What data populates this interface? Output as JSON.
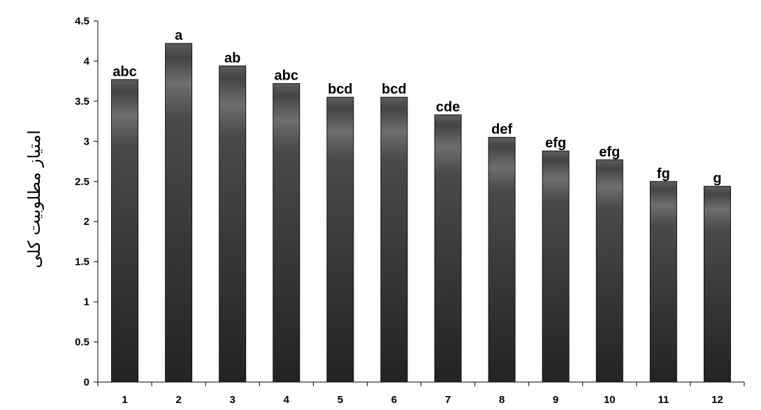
{
  "chart_data": {
    "type": "bar",
    "categories": [
      "1",
      "2",
      "3",
      "4",
      "5",
      "6",
      "7",
      "8",
      "9",
      "10",
      "11",
      "12"
    ],
    "values": [
      3.77,
      4.22,
      3.94,
      3.72,
      3.55,
      3.55,
      3.33,
      3.05,
      2.88,
      2.77,
      2.5,
      2.44
    ],
    "bar_labels": [
      "abc",
      "a",
      "ab",
      "abc",
      "bcd",
      "bcd",
      "cde",
      "def",
      "efg",
      "efg",
      "fg",
      "g"
    ],
    "title": "",
    "xlabel": "",
    "ylabel": "امتیاز مطلوبیت کلی",
    "ylim": [
      0,
      4.5
    ],
    "yticks": [
      "0",
      "0.5",
      "1",
      "1.5",
      "2",
      "2.5",
      "3",
      "3.5",
      "4",
      "4.5"
    ],
    "grid": false,
    "legend": "none",
    "colors": {
      "bar_dark": "#222222",
      "bar_mid": "#4d4d4d",
      "bar_light": "#6e6e6e",
      "axis": "#000000"
    }
  }
}
